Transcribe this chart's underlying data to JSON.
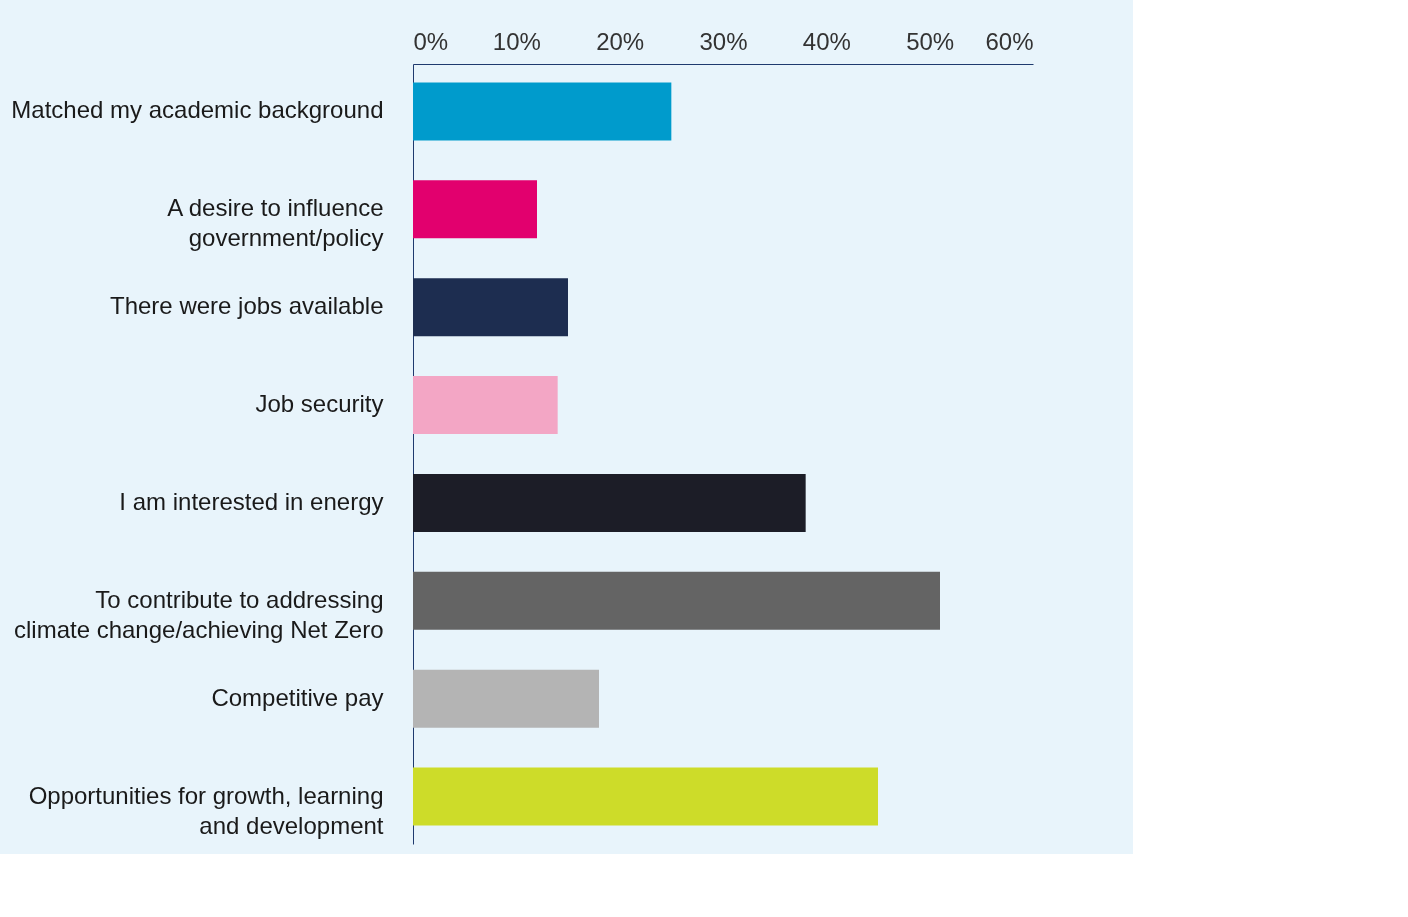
{
  "chart_data": {
    "type": "bar",
    "orientation": "horizontal",
    "categories": [
      "Matched my academic background",
      "A desire to influence government/policy",
      "There were jobs available",
      "Job security",
      "I am interested in energy",
      "To contribute to addressing climate change/achieving Net Zero",
      "Competitive pay",
      "Opportunities for growth, learning and development"
    ],
    "values": [
      25,
      12,
      15,
      14,
      38,
      51,
      18,
      45
    ],
    "colors": [
      "#009bcc",
      "#e2006e",
      "#1d2d50",
      "#f3a6c5",
      "#1c1d27",
      "#646464",
      "#b4b4b4",
      "#cddc29"
    ],
    "xlim": [
      0,
      60
    ],
    "xticks": [
      {
        "value": 0,
        "label": "0%"
      },
      {
        "value": 10,
        "label": "10%"
      },
      {
        "value": 20,
        "label": "20%"
      },
      {
        "value": 30,
        "label": "30%"
      },
      {
        "value": 40,
        "label": "40%"
      },
      {
        "value": 50,
        "label": "50%"
      },
      {
        "value": 60,
        "label": "60%"
      }
    ],
    "grid": false,
    "legend": false
  }
}
